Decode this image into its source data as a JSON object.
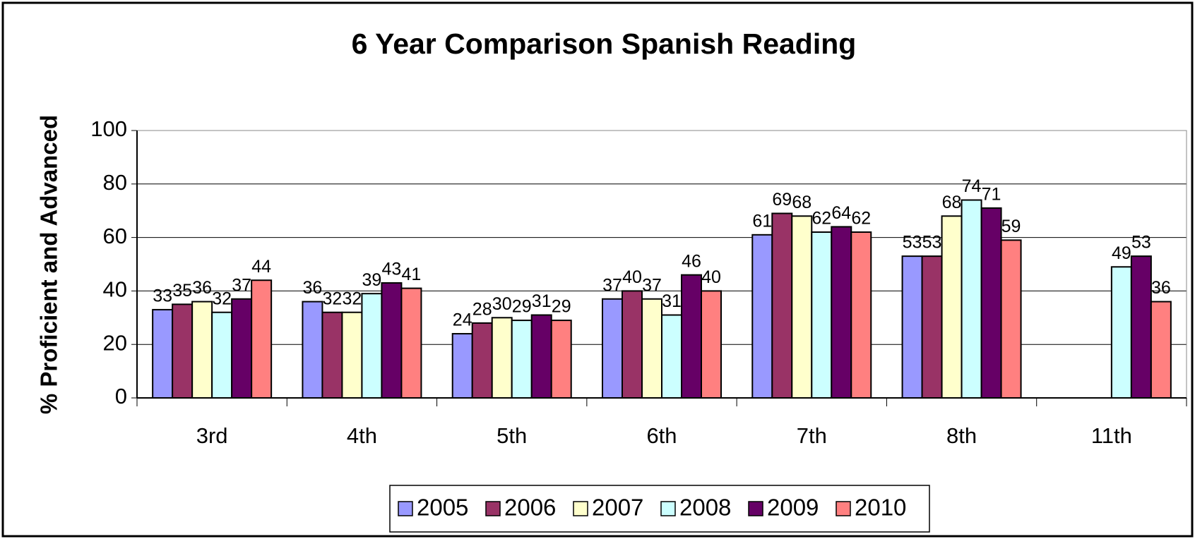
{
  "chart_data": {
    "type": "bar",
    "title": "6 Year Comparison Spanish Reading",
    "y_label": "% Proficient and Advanced",
    "categories": [
      "3rd",
      "4th",
      "5th",
      "6th",
      "7th",
      "8th",
      "11th"
    ],
    "series": [
      {
        "name": "2005",
        "color": "#9999ff",
        "values": [
          33,
          36,
          24,
          37,
          61,
          53,
          null
        ]
      },
      {
        "name": "2006",
        "color": "#993366",
        "values": [
          35,
          32,
          28,
          40,
          69,
          53,
          null
        ]
      },
      {
        "name": "2007",
        "color": "#ffffcc",
        "values": [
          36,
          32,
          30,
          37,
          68,
          68,
          null
        ]
      },
      {
        "name": "2008",
        "color": "#ccffff",
        "values": [
          32,
          39,
          29,
          31,
          62,
          74,
          49
        ]
      },
      {
        "name": "2009",
        "color": "#660066",
        "values": [
          37,
          43,
          31,
          46,
          64,
          71,
          53
        ]
      },
      {
        "name": "2010",
        "color": "#ff8080",
        "values": [
          44,
          41,
          29,
          40,
          62,
          59,
          36
        ]
      }
    ],
    "ylim": [
      0,
      100
    ],
    "yticks": [
      0,
      20,
      40,
      60,
      80,
      100
    ],
    "grid": true,
    "legend": "bottom"
  }
}
